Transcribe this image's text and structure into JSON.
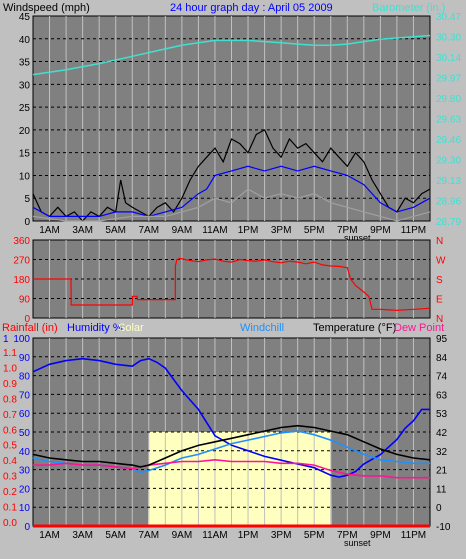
{
  "colors": {
    "background": "#c0c0c0",
    "plot_bg": "#808080",
    "grid_v": "#c0c0c0",
    "grid_h": "#000000",
    "windspeed": "#000000",
    "windavg": "#0000ff",
    "windgust_gray": "#a0a0a0",
    "barometer": "#40e0d0",
    "direction": "#ff0000",
    "rainfall": "#ff0000",
    "humidity": "#0000ff",
    "solar": "#ffffc0",
    "windchill": "#1e90ff",
    "temperature": "#000000",
    "dewpoint": "#ff1493",
    "title_blue": "#0000ff"
  },
  "chart_data": [
    {
      "type": "line",
      "title": "24 hour graph day : April 05 2009",
      "left_label": "Windspeed (mph)",
      "right_label": "Barometer (in.)",
      "ylim_left": [
        0,
        45
      ],
      "left_ticks": [
        "45",
        "40",
        "35",
        "30",
        "25",
        "20",
        "15",
        "10",
        "5",
        "0"
      ],
      "ylim_right": [
        28.79,
        30.47
      ],
      "right_ticks": [
        "30.47",
        "30.30",
        "30.14",
        "29.97",
        "29.80",
        "29.63",
        "29.46",
        "29.30",
        "29.13",
        "28.96",
        "28.79"
      ],
      "xlim_hours": [
        0,
        24
      ],
      "x_ticks": [
        "1AM",
        "3AM",
        "5AM",
        "7AM",
        "9AM",
        "11AM",
        "1PM",
        "3PM",
        "5PM",
        "7PM",
        "9PM",
        "11PM"
      ],
      "annotation": "sunset",
      "series": [
        {
          "key": "barometer",
          "axis": "right",
          "x": [
            0,
            2,
            4,
            6,
            8,
            9,
            10,
            11,
            12,
            13,
            14,
            15,
            16,
            17,
            18,
            19,
            20,
            21,
            22,
            23,
            24
          ],
          "values": [
            29.99,
            30.03,
            30.08,
            30.14,
            30.2,
            30.23,
            30.25,
            30.27,
            30.27,
            30.27,
            30.26,
            30.25,
            30.24,
            30.23,
            30.23,
            30.24,
            30.26,
            30.28,
            30.29,
            30.3,
            30.31
          ]
        },
        {
          "key": "windspeed",
          "axis": "left",
          "x": [
            0,
            0.5,
            1,
            1.5,
            2,
            2.5,
            3,
            3.5,
            4,
            4.5,
            5,
            5.3,
            5.6,
            6,
            6.5,
            7,
            7.5,
            8,
            8.5,
            9,
            9.5,
            10,
            10.5,
            11,
            11.5,
            12,
            12.5,
            13,
            13.5,
            14,
            14.5,
            15,
            15.5,
            16,
            16.5,
            17,
            17.5,
            18,
            18.5,
            19,
            19.5,
            20,
            20.5,
            21,
            21.5,
            22,
            22.5,
            23,
            23.5,
            24
          ],
          "values": [
            6,
            2,
            1,
            3,
            1,
            2,
            0,
            2,
            1,
            3,
            2,
            9,
            4,
            3,
            2,
            1,
            3,
            4,
            2,
            5,
            9,
            12,
            14,
            16,
            13,
            18,
            17,
            15,
            19,
            20,
            16,
            14,
            18,
            16,
            17,
            15,
            13,
            16,
            14,
            12,
            15,
            13,
            9,
            6,
            3,
            2,
            5,
            4,
            6,
            7
          ]
        },
        {
          "key": "windavg",
          "axis": "left",
          "x": [
            0,
            1,
            2,
            3,
            4,
            5,
            6,
            7,
            8,
            9,
            10,
            10.5,
            11,
            12,
            13,
            14,
            15,
            16,
            17,
            18,
            19,
            20,
            21,
            22,
            23,
            24
          ],
          "values": [
            3,
            1,
            1,
            1,
            1,
            2,
            2,
            1,
            2,
            3,
            6,
            7,
            10,
            11,
            12,
            11,
            12,
            11,
            12,
            11,
            10,
            8,
            4,
            2,
            3,
            5
          ]
        },
        {
          "key": "windgust_gray",
          "axis": "left",
          "x": [
            0,
            2,
            4,
            6,
            8,
            9,
            10,
            11,
            12,
            13,
            14,
            15,
            16,
            17,
            18,
            19,
            20,
            21,
            22,
            23,
            24
          ],
          "values": [
            1,
            0,
            0,
            1,
            1,
            2,
            3,
            5,
            4,
            7,
            5,
            6,
            5,
            6,
            4,
            3,
            2,
            1,
            0,
            1,
            2
          ]
        }
      ]
    },
    {
      "type": "line",
      "left_ticks": [
        "360",
        "270",
        "180",
        "90",
        "0"
      ],
      "right_ticks": [
        "N",
        "W",
        "S",
        "E",
        "N"
      ],
      "ylim": [
        0,
        360
      ],
      "xlim_hours": [
        0,
        24
      ],
      "series": [
        {
          "key": "direction",
          "x": [
            0,
            2.3,
            2.31,
            6.0,
            6.01,
            6.3,
            6.31,
            8.6,
            8.61,
            8.7,
            8.9,
            9.2,
            9.5,
            10,
            10.5,
            11,
            11.5,
            12,
            12.5,
            13,
            13.5,
            14,
            14.5,
            15,
            15.5,
            16,
            16.5,
            17,
            17.5,
            18,
            18.5,
            19,
            19.2,
            19.5,
            20,
            20.3,
            20.5,
            21,
            22,
            23,
            24
          ],
          "values": [
            180,
            180,
            60,
            60,
            100,
            100,
            85,
            85,
            240,
            270,
            275,
            270,
            265,
            260,
            268,
            272,
            262,
            258,
            270,
            265,
            262,
            268,
            260,
            255,
            262,
            258,
            250,
            258,
            245,
            240,
            238,
            232,
            180,
            150,
            120,
            100,
            40,
            40,
            35,
            40,
            45
          ]
        }
      ]
    },
    {
      "type": "line",
      "left_labels": {
        "rainfall": "Rainfall (in)",
        "humidity": "Humidity %",
        "solar": "Solar",
        "windchill": "Windchill",
        "temperature": "Temperature (°F)",
        "dewpoint": "Dew Point"
      },
      "rain_ticks": [
        "1.1",
        "1.0",
        "0.9",
        "0.8",
        "0.7",
        "0.6",
        "0.5",
        "0.4",
        "0.3",
        "0.2",
        "0.1",
        "0.0"
      ],
      "hum_ticks": [
        "100",
        "90",
        "80",
        "70",
        "60",
        "50",
        "40",
        "30",
        "20",
        "10",
        "0"
      ],
      "ylim_left": [
        0,
        100
      ],
      "ylim_right": [
        -10,
        95
      ],
      "right_ticks": [
        "95",
        "84",
        "74",
        "63",
        "53",
        "42",
        "32",
        "21",
        "11",
        "0",
        "-10"
      ],
      "top_left_mark": "1",
      "xlim_hours": [
        0,
        24
      ],
      "x_ticks": [
        "1AM",
        "3AM",
        "5AM",
        "7AM",
        "9AM",
        "11AM",
        "1PM",
        "3PM",
        "5PM",
        "7PM",
        "9PM",
        "11PM"
      ],
      "annotation": "sunset",
      "series": [
        {
          "key": "humidity",
          "axis": "left",
          "x": [
            0,
            1,
            2,
            3,
            4,
            5,
            6,
            6.5,
            7,
            7.5,
            8,
            8.5,
            9,
            9.5,
            10,
            10.5,
            11,
            12,
            13,
            14,
            15,
            16,
            17,
            18,
            18.5,
            19,
            19.5,
            20,
            21,
            22,
            22.5,
            23,
            23.5,
            24
          ],
          "values": [
            82,
            86,
            88,
            89,
            88,
            86,
            85,
            88,
            89,
            87,
            84,
            78,
            72,
            67,
            62,
            55,
            48,
            43,
            40,
            37,
            35,
            33,
            31,
            27,
            26,
            27,
            29,
            33,
            38,
            46,
            52,
            56,
            62,
            62
          ]
        },
        {
          "key": "temperature",
          "axis": "right",
          "x": [
            0,
            1,
            2,
            3,
            4,
            5,
            6,
            6.5,
            7,
            8,
            9,
            10,
            11,
            12,
            13,
            14,
            15,
            16,
            17,
            18,
            19,
            20,
            21,
            22,
            23,
            24
          ],
          "values": [
            30,
            28,
            27,
            26,
            26,
            25,
            24,
            23,
            24,
            28,
            32,
            35,
            37,
            39,
            41,
            43,
            45,
            46,
            45,
            43,
            41,
            37,
            33,
            30,
            28,
            27
          ]
        },
        {
          "key": "windchill",
          "axis": "right",
          "x": [
            0,
            1,
            2,
            3,
            4,
            5,
            6,
            6.5,
            7,
            8,
            9,
            10,
            11,
            12,
            13,
            14,
            15,
            16,
            17,
            18,
            19,
            20,
            21,
            22,
            23,
            24
          ],
          "values": [
            28,
            26,
            25,
            24,
            24,
            23,
            22,
            20,
            21,
            24,
            28,
            30,
            33,
            36,
            38,
            40,
            42,
            43,
            41,
            38,
            34,
            30,
            27,
            26,
            25,
            25
          ]
        },
        {
          "key": "dewpoint",
          "axis": "right",
          "x": [
            0,
            1,
            2,
            3,
            4,
            5,
            6,
            7,
            8,
            9,
            10,
            11,
            12,
            13,
            14,
            15,
            16,
            17,
            18,
            19,
            20,
            21,
            22,
            23,
            24
          ],
          "values": [
            24,
            24,
            25,
            24,
            24,
            23,
            22,
            24,
            25,
            26,
            26,
            27,
            26,
            26,
            26,
            25,
            25,
            24,
            21,
            19,
            18,
            18,
            17,
            17,
            17
          ]
        },
        {
          "key": "solar",
          "axis": "left",
          "x": [
            0,
            6.95,
            7.0,
            18.0,
            18.05,
            24
          ],
          "values": [
            0,
            0,
            50,
            50,
            0,
            0
          ]
        },
        {
          "key": "rainfall",
          "axis": "left",
          "x": [
            0,
            24
          ],
          "values": [
            0,
            0
          ]
        }
      ]
    }
  ]
}
